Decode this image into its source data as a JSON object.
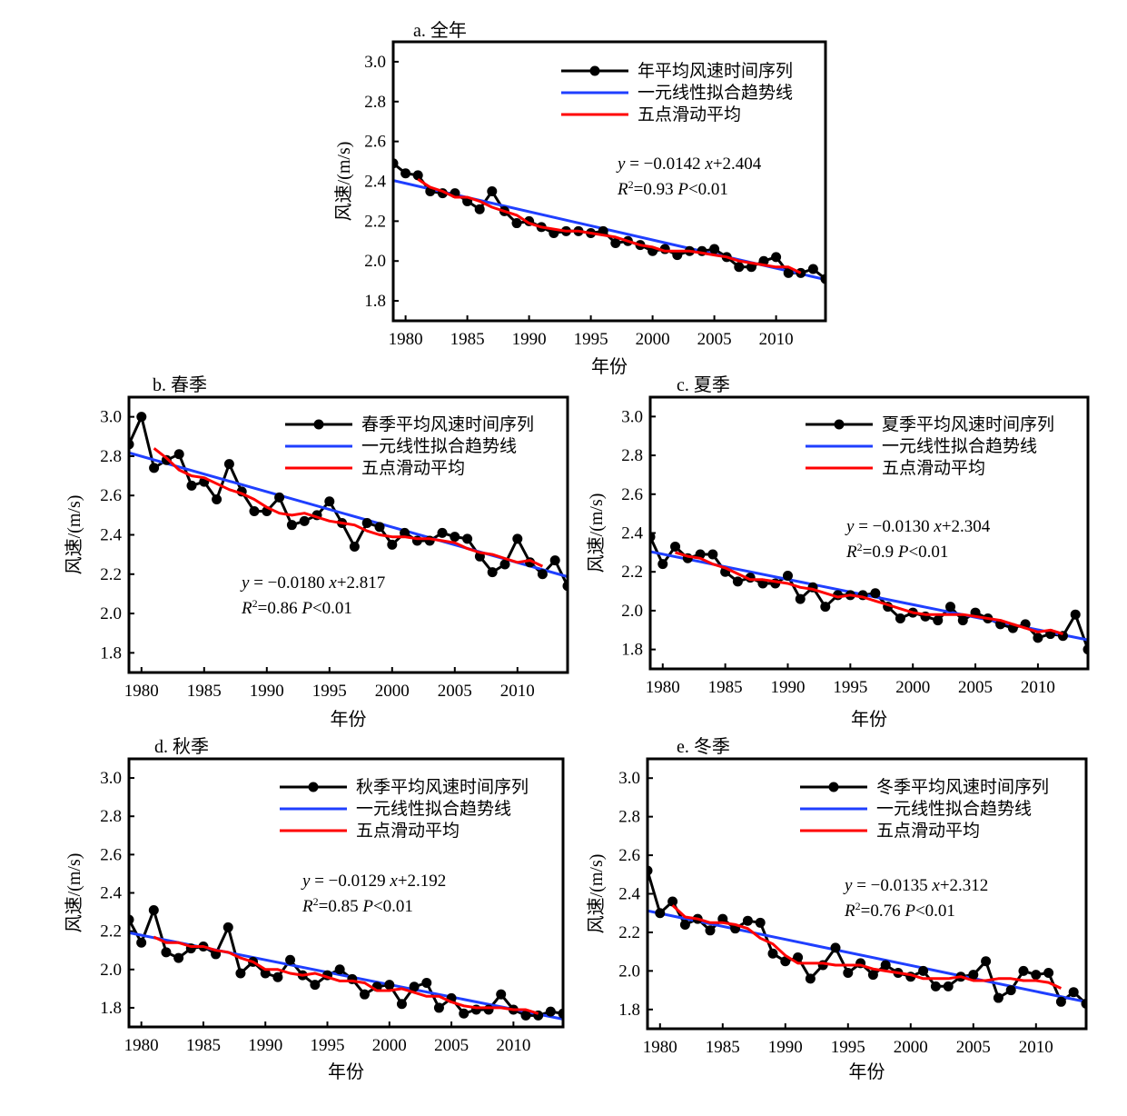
{
  "page": {
    "background": "#ffffff"
  },
  "colors": {
    "observed": "#000000",
    "trend": "#1f3fff",
    "moving_avg": "#ff0000"
  },
  "chart_data": [
    {
      "type": "line",
      "title": "a. 全年",
      "xlabel": "年份",
      "ylabel": "风速/(m/s)",
      "xlim": [
        1979,
        2014
      ],
      "ylim": [
        1.7,
        3.1
      ],
      "xticks": [
        1980,
        1985,
        1990,
        1995,
        2000,
        2005,
        2010
      ],
      "yticks": [
        "1.8",
        "2.0",
        "2.2",
        "2.4",
        "2.6",
        "2.8",
        "3.0"
      ],
      "legend_position": "top-right",
      "legend": [
        "年平均风速时间序列",
        "一元线性拟合趋势线",
        "五点滑动平均"
      ],
      "equation": {
        "y": "y",
        "rhs": " = −0.0142 ",
        "x": "x",
        "rest": "+2.404",
        "r2": "R",
        "sup": "2",
        "r2val": "=0.93  ",
        "p": "P",
        "pval": "<0.01"
      },
      "x": [
        1979,
        1980,
        1981,
        1982,
        1983,
        1984,
        1985,
        1986,
        1987,
        1988,
        1989,
        1990,
        1991,
        1992,
        1993,
        1994,
        1995,
        1996,
        1997,
        1998,
        1999,
        2000,
        2001,
        2002,
        2003,
        2004,
        2005,
        2006,
        2007,
        2008,
        2009,
        2010,
        2011,
        2012,
        2013,
        2014
      ],
      "series": [
        {
          "name": "年平均风速时间序列",
          "kind": "observed",
          "values": [
            2.49,
            2.44,
            2.43,
            2.35,
            2.34,
            2.34,
            2.3,
            2.26,
            2.35,
            2.25,
            2.19,
            2.2,
            2.17,
            2.14,
            2.15,
            2.15,
            2.14,
            2.15,
            2.09,
            2.1,
            2.08,
            2.05,
            2.06,
            2.03,
            2.05,
            2.05,
            2.06,
            2.02,
            1.97,
            1.97,
            2.0,
            2.02,
            1.94,
            1.94,
            1.96,
            1.91
          ]
        },
        {
          "name": "一元线性拟合趋势线",
          "kind": "trend",
          "slope": -0.0142,
          "intercept": 2.404
        },
        {
          "name": "五点滑动平均",
          "kind": "moving_avg",
          "x": [
            1981,
            1982,
            1983,
            1984,
            1985,
            1986,
            1987,
            1988,
            1989,
            1990,
            1991,
            1992,
            1993,
            1994,
            1995,
            1996,
            1997,
            1998,
            1999,
            2000,
            2001,
            2002,
            2003,
            2004,
            2005,
            2006,
            2007,
            2008,
            2009,
            2010,
            2011,
            2012
          ],
          "values": [
            2.41,
            2.37,
            2.35,
            2.32,
            2.32,
            2.3,
            2.27,
            2.25,
            2.23,
            2.19,
            2.17,
            2.16,
            2.15,
            2.15,
            2.14,
            2.13,
            2.12,
            2.1,
            2.08,
            2.07,
            2.05,
            2.05,
            2.05,
            2.04,
            2.03,
            2.02,
            2.0,
            1.99,
            1.98,
            1.97,
            1.97,
            1.94
          ]
        }
      ]
    },
    {
      "type": "line",
      "title": "b. 春季",
      "xlabel": "年份",
      "ylabel": "风速/(m/s)",
      "xlim": [
        1979,
        2014
      ],
      "ylim": [
        1.7,
        3.1
      ],
      "xticks": [
        1980,
        1985,
        1990,
        1995,
        2000,
        2005,
        2010
      ],
      "yticks": [
        "1.8",
        "2.0",
        "2.2",
        "2.4",
        "2.6",
        "2.8",
        "3.0"
      ],
      "legend_position": "top-right",
      "legend": [
        "春季平均风速时间序列",
        "一元线性拟合趋势线",
        "五点滑动平均"
      ],
      "equation": {
        "y": "y",
        "rhs": " = −0.0180 ",
        "x": "x",
        "rest": "+2.817",
        "r2": "R",
        "sup": "2",
        "r2val": "=0.86  ",
        "p": "P",
        "pval": "<0.01"
      },
      "x": [
        1979,
        1980,
        1981,
        1982,
        1983,
        1984,
        1985,
        1986,
        1987,
        1988,
        1989,
        1990,
        1991,
        1992,
        1993,
        1994,
        1995,
        1996,
        1997,
        1998,
        1999,
        2000,
        2001,
        2002,
        2003,
        2004,
        2005,
        2006,
        2007,
        2008,
        2009,
        2010,
        2011,
        2012,
        2013,
        2014
      ],
      "series": [
        {
          "name": "春季平均风速时间序列",
          "kind": "observed",
          "values": [
            2.86,
            3.0,
            2.74,
            2.78,
            2.81,
            2.65,
            2.67,
            2.58,
            2.76,
            2.62,
            2.52,
            2.52,
            2.59,
            2.45,
            2.47,
            2.5,
            2.57,
            2.46,
            2.34,
            2.46,
            2.44,
            2.35,
            2.41,
            2.37,
            2.37,
            2.41,
            2.39,
            2.38,
            2.29,
            2.21,
            2.25,
            2.38,
            2.26,
            2.2,
            2.27,
            2.14
          ]
        },
        {
          "name": "一元线性拟合趋势线",
          "kind": "trend",
          "slope": -0.018,
          "intercept": 2.817
        },
        {
          "name": "五点滑动平均",
          "kind": "moving_avg",
          "x": [
            1981,
            1982,
            1983,
            1984,
            1985,
            1986,
            1987,
            1988,
            1989,
            1990,
            1991,
            1992,
            1993,
            1994,
            1995,
            1996,
            1997,
            1998,
            1999,
            2000,
            2001,
            2002,
            2003,
            2004,
            2005,
            2006,
            2007,
            2008,
            2009,
            2010,
            2011,
            2012
          ],
          "values": [
            2.84,
            2.79,
            2.73,
            2.7,
            2.69,
            2.66,
            2.63,
            2.61,
            2.58,
            2.54,
            2.51,
            2.5,
            2.51,
            2.49,
            2.47,
            2.46,
            2.45,
            2.42,
            2.4,
            2.39,
            2.39,
            2.38,
            2.38,
            2.37,
            2.36,
            2.33,
            2.31,
            2.3,
            2.28,
            2.26,
            2.27,
            2.24
          ]
        }
      ]
    },
    {
      "type": "line",
      "title": "c. 夏季",
      "xlabel": "年份",
      "ylabel": "风速/(m/s)",
      "xlim": [
        1979,
        2014
      ],
      "ylim": [
        1.7,
        3.1
      ],
      "xticks": [
        1980,
        1985,
        1990,
        1995,
        2000,
        2005,
        2010
      ],
      "yticks": [
        "1.8",
        "2.0",
        "2.2",
        "2.4",
        "2.6",
        "2.8",
        "3.0"
      ],
      "legend_position": "top-right",
      "legend": [
        "夏季平均风速时间序列",
        "一元线性拟合趋势线",
        "五点滑动平均"
      ],
      "equation": {
        "y": "y",
        "rhs": " = −0.0130 ",
        "x": "x",
        "rest": "+2.304",
        "r2": "R",
        "sup": "2",
        "r2val": "=0.9  ",
        "p": "P",
        "pval": "<0.01"
      },
      "x": [
        1979,
        1980,
        1981,
        1982,
        1983,
        1984,
        1985,
        1986,
        1987,
        1988,
        1989,
        1990,
        1991,
        1992,
        1993,
        1994,
        1995,
        1996,
        1997,
        1998,
        1999,
        2000,
        2001,
        2002,
        2003,
        2004,
        2005,
        2006,
        2007,
        2008,
        2009,
        2010,
        2011,
        2012,
        2013,
        2014
      ],
      "series": [
        {
          "name": "夏季平均风速时间序列",
          "kind": "observed",
          "values": [
            2.38,
            2.24,
            2.33,
            2.27,
            2.29,
            2.29,
            2.2,
            2.15,
            2.17,
            2.14,
            2.14,
            2.18,
            2.06,
            2.12,
            2.02,
            2.08,
            2.08,
            2.08,
            2.09,
            2.02,
            1.96,
            1.99,
            1.97,
            1.95,
            2.02,
            1.95,
            1.99,
            1.96,
            1.93,
            1.91,
            1.93,
            1.86,
            1.88,
            1.87,
            1.98,
            1.8
          ]
        },
        {
          "name": "一元线性拟合趋势线",
          "kind": "trend",
          "slope": -0.013,
          "intercept": 2.304
        },
        {
          "name": "五点滑动平均",
          "kind": "moving_avg",
          "x": [
            1981,
            1982,
            1983,
            1984,
            1985,
            1986,
            1987,
            1988,
            1989,
            1990,
            1991,
            1992,
            1993,
            1994,
            1995,
            1996,
            1997,
            1998,
            1999,
            2000,
            2001,
            2002,
            2003,
            2004,
            2005,
            2006,
            2007,
            2008,
            2009,
            2010,
            2011,
            2012
          ],
          "values": [
            2.3,
            2.28,
            2.27,
            2.24,
            2.22,
            2.19,
            2.16,
            2.16,
            2.15,
            2.14,
            2.12,
            2.11,
            2.09,
            2.07,
            2.08,
            2.07,
            2.05,
            2.03,
            2.01,
            1.99,
            1.98,
            1.98,
            1.98,
            1.98,
            1.97,
            1.96,
            1.95,
            1.93,
            1.91,
            1.89,
            1.9,
            1.88
          ]
        }
      ]
    },
    {
      "type": "line",
      "title": "d. 秋季",
      "xlabel": "年份",
      "ylabel": "风速/(m/s)",
      "xlim": [
        1979,
        2014
      ],
      "ylim": [
        1.7,
        3.1
      ],
      "xticks": [
        1980,
        1985,
        1990,
        1995,
        2000,
        2005,
        2010
      ],
      "yticks": [
        "1.8",
        "2.0",
        "2.2",
        "2.4",
        "2.6",
        "2.8",
        "3.0"
      ],
      "legend_position": "top-right",
      "legend": [
        "秋季平均风速时间序列",
        "一元线性拟合趋势线",
        "五点滑动平均"
      ],
      "equation": {
        "y": "y",
        "rhs": " = −0.0129 ",
        "x": "x",
        "rest": "+2.192",
        "r2": "R",
        "sup": "2",
        "r2val": "=0.85  ",
        "p": "P",
        "pval": "<0.01"
      },
      "x": [
        1979,
        1980,
        1981,
        1982,
        1983,
        1984,
        1985,
        1986,
        1987,
        1988,
        1989,
        1990,
        1991,
        1992,
        1993,
        1994,
        1995,
        1996,
        1997,
        1998,
        1999,
        2000,
        2001,
        2002,
        2003,
        2004,
        2005,
        2006,
        2007,
        2008,
        2009,
        2010,
        2011,
        2012,
        2013,
        2014
      ],
      "series": [
        {
          "name": "秋季平均风速时间序列",
          "kind": "observed",
          "values": [
            2.26,
            2.14,
            2.31,
            2.09,
            2.06,
            2.11,
            2.12,
            2.08,
            2.22,
            1.98,
            2.04,
            1.98,
            1.96,
            2.05,
            1.97,
            1.92,
            1.97,
            2.0,
            1.95,
            1.87,
            1.91,
            1.92,
            1.82,
            1.91,
            1.93,
            1.8,
            1.85,
            1.77,
            1.79,
            1.79,
            1.87,
            1.79,
            1.76,
            1.76,
            1.78,
            1.77
          ]
        },
        {
          "name": "一元线性拟合趋势线",
          "kind": "trend",
          "slope": -0.0129,
          "intercept": 2.192
        },
        {
          "name": "五点滑动平均",
          "kind": "moving_avg",
          "x": [
            1981,
            1982,
            1983,
            1984,
            1985,
            1986,
            1987,
            1988,
            1989,
            1990,
            1991,
            1992,
            1993,
            1994,
            1995,
            1996,
            1997,
            1998,
            1999,
            2000,
            2001,
            2002,
            2003,
            2004,
            2005,
            2006,
            2007,
            2008,
            2009,
            2010,
            2011,
            2012
          ],
          "values": [
            2.17,
            2.14,
            2.14,
            2.12,
            2.12,
            2.1,
            2.09,
            2.06,
            2.04,
            2.0,
            2.0,
            1.98,
            1.97,
            1.98,
            1.96,
            1.94,
            1.94,
            1.93,
            1.89,
            1.89,
            1.9,
            1.88,
            1.86,
            1.86,
            1.83,
            1.81,
            1.8,
            1.8,
            1.8,
            1.79,
            1.79,
            1.77
          ]
        }
      ]
    },
    {
      "type": "line",
      "title": "e. 冬季",
      "xlabel": "年份",
      "ylabel": "风速/(m/s)",
      "xlim": [
        1979,
        2014
      ],
      "ylim": [
        1.7,
        3.1
      ],
      "xticks": [
        1980,
        1985,
        1990,
        1995,
        2000,
        2005,
        2010
      ],
      "yticks": [
        "1.8",
        "2.0",
        "2.2",
        "2.4",
        "2.6",
        "2.8",
        "3.0"
      ],
      "legend_position": "top-right",
      "legend": [
        "冬季平均风速时间序列",
        "一元线性拟合趋势线",
        "五点滑动平均"
      ],
      "equation": {
        "y": "y",
        "rhs": " = −0.0135 ",
        "x": "x",
        "rest": "+2.312",
        "r2": "R",
        "sup": "2",
        "r2val": "=0.76  ",
        "p": "P",
        "pval": "<0.01"
      },
      "x": [
        1979,
        1980,
        1981,
        1982,
        1983,
        1984,
        1985,
        1986,
        1987,
        1988,
        1989,
        1990,
        1991,
        1992,
        1993,
        1994,
        1995,
        1996,
        1997,
        1998,
        1999,
        2000,
        2001,
        2002,
        2003,
        2004,
        2005,
        2006,
        2007,
        2008,
        2009,
        2010,
        2011,
        2012,
        2013,
        2014
      ],
      "series": [
        {
          "name": "冬季平均风速时间序列",
          "kind": "observed",
          "values": [
            2.52,
            2.3,
            2.36,
            2.24,
            2.27,
            2.21,
            2.27,
            2.22,
            2.26,
            2.25,
            2.09,
            2.05,
            2.07,
            1.96,
            2.03,
            2.12,
            1.99,
            2.04,
            1.98,
            2.03,
            1.99,
            1.97,
            2.0,
            1.92,
            1.92,
            1.97,
            1.98,
            2.05,
            1.86,
            1.9,
            2.0,
            1.98,
            1.99,
            1.84,
            1.89,
            1.83
          ]
        },
        {
          "name": "一元线性拟合趋势线",
          "kind": "trend",
          "slope": -0.0135,
          "intercept": 2.312
        },
        {
          "name": "五点滑动平均",
          "kind": "moving_avg",
          "x": [
            1981,
            1982,
            1983,
            1984,
            1985,
            1986,
            1987,
            1988,
            1989,
            1990,
            1991,
            1992,
            1993,
            1994,
            1995,
            1996,
            1997,
            1998,
            1999,
            2000,
            2001,
            2002,
            2003,
            2004,
            2005,
            2006,
            2007,
            2008,
            2009,
            2010,
            2011,
            2012
          ],
          "values": [
            2.34,
            2.28,
            2.27,
            2.25,
            2.25,
            2.24,
            2.22,
            2.17,
            2.14,
            2.08,
            2.04,
            2.04,
            2.04,
            2.03,
            2.03,
            2.03,
            2.01,
            2.0,
            1.99,
            1.98,
            1.96,
            1.96,
            1.96,
            1.97,
            1.95,
            1.95,
            1.96,
            1.96,
            1.95,
            1.95,
            1.94,
            1.91
          ]
        }
      ]
    }
  ]
}
